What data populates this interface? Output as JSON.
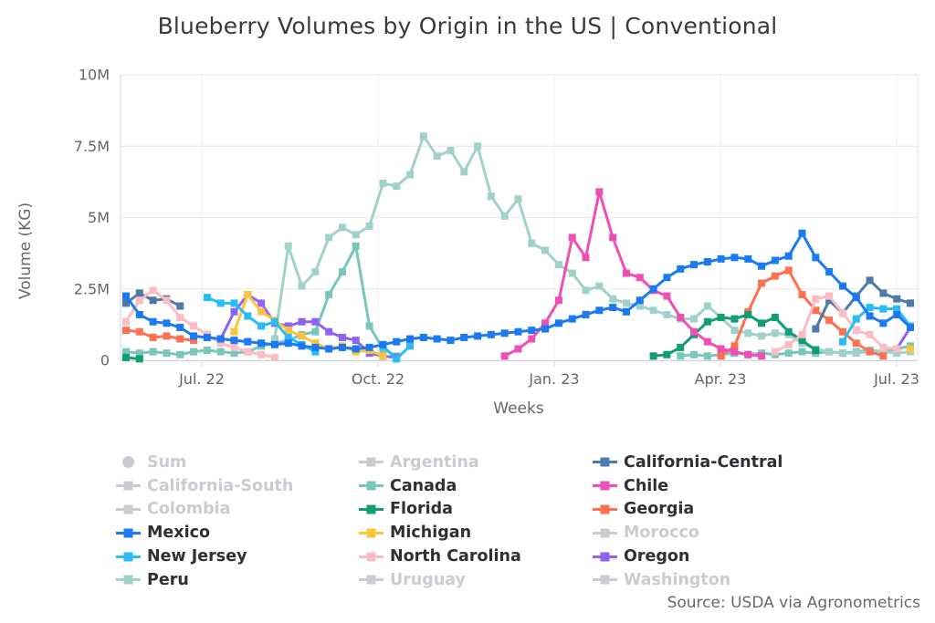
{
  "page": {
    "title": "Blueberry Volumes by Origin in the US | Conventional",
    "source": "Source: USDA via Agronometrics"
  },
  "chart_data": {
    "type": "line",
    "title": "Blueberry Volumes by Origin in the US | Conventional",
    "xlabel": "Weeks",
    "ylabel": "Volume (KG)",
    "unit": "million KG (weekly values, read from axis; ~1 point per week from late May 2022 to early Jul 2023)",
    "ylim_million": [
      0,
      10
    ],
    "y_ticks": [
      {
        "label": "0",
        "value_million": 0
      },
      {
        "label": "2.5M",
        "value_million": 2.5
      },
      {
        "label": "5M",
        "value_million": 5
      },
      {
        "label": "7.5M",
        "value_million": 7.5
      },
      {
        "label": "10M",
        "value_million": 10
      }
    ],
    "x_tick_labels": [
      "Jul. 22",
      "Oct. 22",
      "Jan. 23",
      "Apr. 23",
      "Jul. 23"
    ],
    "grid": true,
    "legend_position": "bottom",
    "num_weeks": 59,
    "series": [
      {
        "name": "Canada",
        "color": "#79c6bc",
        "values_million_kg": [
          0.3,
          0.25,
          0.3,
          0.25,
          0.2,
          0.3,
          0.35,
          0.3,
          0.25,
          0.3,
          0.5,
          0.6,
          0.7,
          0.9,
          1,
          2.3,
          3.1,
          4,
          1.2,
          0.4,
          0.15,
          null,
          null,
          null,
          null,
          null,
          null,
          null,
          null,
          null,
          null,
          null,
          null,
          null,
          null,
          null,
          null,
          null,
          null,
          null,
          null,
          0.15,
          0.2,
          0.15,
          0.2,
          0.25,
          0.2,
          0.25,
          0.2,
          0.25,
          0.3,
          0.25,
          0.3,
          0.25,
          0.3,
          0.35,
          0.3,
          0.4,
          0.5
        ]
      },
      {
        "name": "Peru",
        "color": "#a0d2cb",
        "values_million_kg": [
          null,
          null,
          null,
          null,
          null,
          null,
          null,
          null,
          null,
          null,
          null,
          0.75,
          4,
          2.6,
          3.1,
          4.3,
          4.65,
          4.4,
          4.7,
          6.2,
          6.1,
          6.5,
          7.85,
          7.15,
          7.35,
          6.6,
          7.5,
          5.75,
          5.05,
          5.65,
          4.1,
          3.85,
          3.35,
          3.05,
          2.45,
          2.6,
          2.15,
          2,
          1.9,
          1.75,
          1.6,
          1.45,
          1.45,
          1.9,
          1.5,
          1.05,
          0.95,
          0.85,
          0.95,
          0.9,
          0.6,
          0.4,
          0.3,
          0.25,
          0.25,
          0.3,
          0.3,
          0.25,
          0.3
        ]
      },
      {
        "name": "Oregon",
        "color": "#8f62f5",
        "values_million_kg": [
          null,
          null,
          null,
          null,
          null,
          null,
          null,
          0.75,
          1.7,
          2.3,
          2,
          1.3,
          1.2,
          1.35,
          1.35,
          1,
          0.8,
          0.7,
          0.25,
          0.15,
          0.1,
          null,
          null,
          null,
          null,
          null,
          null,
          null,
          null,
          null,
          null,
          null,
          null,
          null,
          null,
          null,
          null,
          null,
          null,
          null,
          null,
          null,
          null,
          null,
          null,
          null,
          null,
          null,
          null,
          null,
          null,
          null,
          null,
          null,
          null,
          null,
          null,
          0.4,
          1.15
        ]
      },
      {
        "name": "Michigan",
        "color": "#fcc43d",
        "values_million_kg": [
          null,
          null,
          null,
          null,
          null,
          null,
          null,
          null,
          1,
          2.3,
          1.7,
          1.4,
          1.05,
          0.85,
          0.6,
          0.4,
          0.5,
          0.3,
          0.35,
          0.15,
          null,
          null,
          null,
          null,
          null,
          null,
          null,
          null,
          null,
          null,
          null,
          null,
          null,
          null,
          null,
          null,
          null,
          null,
          null,
          null,
          null,
          null,
          null,
          null,
          null,
          null,
          null,
          null,
          null,
          null,
          null,
          null,
          null,
          null,
          null,
          null,
          null,
          null,
          0.4
        ]
      },
      {
        "name": "Georgia",
        "color": "#fe7052",
        "values_million_kg": [
          1.05,
          1,
          0.8,
          0.85,
          0.75,
          0.7,
          null,
          null,
          null,
          null,
          null,
          null,
          null,
          null,
          null,
          null,
          null,
          null,
          null,
          null,
          null,
          null,
          null,
          null,
          null,
          null,
          null,
          null,
          null,
          null,
          null,
          null,
          null,
          null,
          null,
          null,
          null,
          null,
          null,
          null,
          null,
          null,
          null,
          null,
          0.15,
          0.5,
          1.7,
          2.7,
          2.95,
          3.15,
          2.3,
          1.75,
          1.4,
          1,
          0.6,
          0.3,
          0.15,
          null,
          null
        ]
      },
      {
        "name": "Florida",
        "color": "#119e73",
        "values_million_kg": [
          0.1,
          0.05,
          null,
          null,
          null,
          null,
          null,
          null,
          null,
          null,
          null,
          null,
          null,
          null,
          null,
          null,
          null,
          null,
          null,
          null,
          null,
          null,
          null,
          null,
          null,
          null,
          null,
          null,
          null,
          null,
          null,
          null,
          null,
          null,
          null,
          null,
          null,
          null,
          null,
          0.15,
          0.2,
          0.45,
          0.9,
          1.35,
          1.5,
          1.45,
          1.6,
          1.3,
          1.5,
          1,
          0.7,
          0.35,
          null,
          null,
          null,
          null,
          null,
          null
        ]
      },
      {
        "name": "Chile",
        "color": "#ee4fb5",
        "values_million_kg": [
          null,
          null,
          null,
          null,
          null,
          null,
          null,
          null,
          null,
          null,
          null,
          null,
          null,
          null,
          null,
          null,
          null,
          null,
          null,
          null,
          null,
          null,
          null,
          null,
          null,
          null,
          null,
          null,
          0.15,
          0.4,
          0.75,
          1.3,
          2.1,
          4.3,
          3.6,
          5.9,
          4.3,
          3.05,
          2.9,
          2.45,
          2.25,
          1.5,
          1,
          0.65,
          0.4,
          0.3,
          0.2,
          0.15,
          null,
          null,
          null,
          null,
          null,
          null,
          null,
          null,
          null,
          null,
          null
        ]
      },
      {
        "name": "California-Central",
        "color": "#4e7aa9",
        "values_million_kg": [
          2,
          2.35,
          2.1,
          2.15,
          1.9,
          null,
          null,
          null,
          null,
          null,
          null,
          null,
          null,
          null,
          null,
          null,
          null,
          null,
          null,
          null,
          null,
          null,
          null,
          null,
          null,
          null,
          null,
          null,
          null,
          null,
          null,
          null,
          null,
          null,
          null,
          null,
          null,
          null,
          null,
          null,
          null,
          null,
          null,
          null,
          null,
          null,
          null,
          null,
          null,
          null,
          null,
          1.1,
          2.1,
          1.65,
          2.25,
          2.8,
          2.35,
          2.15,
          2
        ]
      },
      {
        "name": "North Carolina",
        "color": "#fbbcc6",
        "values_million_kg": [
          1.35,
          2.1,
          2.45,
          2.1,
          1.5,
          1.2,
          0.9,
          0.6,
          0.45,
          0.3,
          0.2,
          0.1,
          null,
          null,
          null,
          null,
          null,
          null,
          null,
          null,
          null,
          null,
          null,
          null,
          null,
          null,
          null,
          null,
          null,
          null,
          null,
          null,
          null,
          null,
          null,
          null,
          null,
          null,
          null,
          null,
          null,
          null,
          null,
          null,
          null,
          null,
          null,
          null,
          0.3,
          0.55,
          0.9,
          2.15,
          2.25,
          1.65,
          1.05,
          0.9,
          0.45,
          0.4
        ]
      },
      {
        "name": "New Jersey",
        "color": "#29bcf7",
        "values_million_kg": [
          null,
          null,
          null,
          null,
          null,
          null,
          2.2,
          2,
          2,
          1.55,
          1.2,
          1.35,
          0.8,
          0.55,
          0.3,
          null,
          null,
          null,
          null,
          0.5,
          0.05,
          0.5,
          null,
          null,
          null,
          null,
          null,
          null,
          null,
          null,
          null,
          null,
          null,
          null,
          null,
          null,
          null,
          null,
          null,
          null,
          null,
          null,
          null,
          null,
          null,
          null,
          null,
          null,
          null,
          null,
          null,
          null,
          null,
          0.65,
          1.45,
          1.85,
          1.8,
          1.8,
          1.2
        ]
      },
      {
        "name": "Mexico",
        "color": "#1b7af2",
        "values_million_kg": [
          2.25,
          1.6,
          1.35,
          1.3,
          1.15,
          0.85,
          0.8,
          0.75,
          0.7,
          0.65,
          0.6,
          0.55,
          0.6,
          0.5,
          0.45,
          0.4,
          0.45,
          0.4,
          0.45,
          0.55,
          0.65,
          0.75,
          0.8,
          0.75,
          0.7,
          0.8,
          0.85,
          0.9,
          0.95,
          1,
          1.05,
          1.1,
          1.3,
          1.45,
          1.6,
          1.75,
          1.85,
          1.7,
          2.1,
          2.5,
          2.9,
          3.2,
          3.35,
          3.45,
          3.55,
          3.6,
          3.55,
          3.3,
          3.5,
          3.65,
          4.45,
          3.6,
          3.1,
          2.6,
          2.2,
          1.55,
          1.3,
          1.6,
          1.15
        ]
      }
    ]
  },
  "legend": {
    "disabled_color": "#c9ccd1",
    "columns": [
      {
        "items": [
          {
            "label": "Sum",
            "enabled": false,
            "marker": "circle",
            "color": "#c9ccd1"
          },
          {
            "label": "California-South",
            "enabled": false,
            "marker": "square",
            "color": "#c9ccd1"
          },
          {
            "label": "Colombia",
            "enabled": false,
            "marker": "square",
            "color": "#c9ccd1"
          },
          {
            "label": "Mexico",
            "enabled": true,
            "marker": "square",
            "color": "#1b7af2"
          },
          {
            "label": "New Jersey",
            "enabled": true,
            "marker": "square",
            "color": "#29bcf7"
          },
          {
            "label": "Peru",
            "enabled": true,
            "marker": "square",
            "color": "#a0d2cb"
          }
        ]
      },
      {
        "items": [
          {
            "label": "Argentina",
            "enabled": false,
            "marker": "square",
            "color": "#c9ccd1"
          },
          {
            "label": "Canada",
            "enabled": true,
            "marker": "square",
            "color": "#79c6bc"
          },
          {
            "label": "Florida",
            "enabled": true,
            "marker": "square",
            "color": "#119e73"
          },
          {
            "label": "Michigan",
            "enabled": true,
            "marker": "square",
            "color": "#fcc43d"
          },
          {
            "label": "North Carolina",
            "enabled": true,
            "marker": "square",
            "color": "#fbbcc6"
          },
          {
            "label": "Uruguay",
            "enabled": false,
            "marker": "square",
            "color": "#c9ccd1"
          }
        ]
      },
      {
        "items": [
          {
            "label": "California-Central",
            "enabled": true,
            "marker": "square",
            "color": "#4e7aa9"
          },
          {
            "label": "Chile",
            "enabled": true,
            "marker": "square",
            "color": "#ee4fb5"
          },
          {
            "label": "Georgia",
            "enabled": true,
            "marker": "square",
            "color": "#fe7052"
          },
          {
            "label": "Morocco",
            "enabled": false,
            "marker": "square",
            "color": "#c9ccd1"
          },
          {
            "label": "Oregon",
            "enabled": true,
            "marker": "square",
            "color": "#8f62f5"
          },
          {
            "label": "Washington",
            "enabled": false,
            "marker": "square",
            "color": "#c9ccd1"
          }
        ]
      }
    ]
  }
}
